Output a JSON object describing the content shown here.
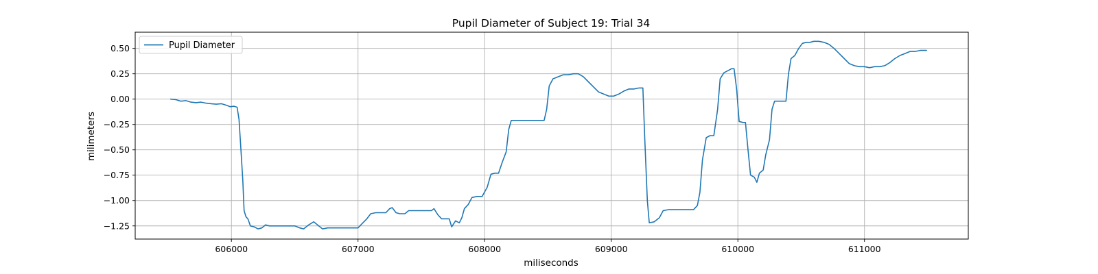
{
  "chart_data": {
    "type": "line",
    "title": "Pupil Diameter of Subject 19: Trial 34",
    "xlabel": "miliseconds",
    "ylabel": "milimeters",
    "xlim": [
      605240,
      611820
    ],
    "ylim": [
      -1.38,
      0.66
    ],
    "xticks": [
      606000,
      607000,
      608000,
      609000,
      610000,
      611000
    ],
    "xtick_labels": [
      "606000",
      "607000",
      "608000",
      "609000",
      "610000",
      "611000"
    ],
    "yticks": [
      0.5,
      0.25,
      0.0,
      -0.25,
      -0.5,
      -0.75,
      -1.0,
      -1.25
    ],
    "ytick_labels": [
      "0.50",
      "0.25",
      "0.00",
      "−0.25",
      "−0.50",
      "−0.75",
      "−1.00",
      "−1.25"
    ],
    "grid": true,
    "legend_position": "top-left",
    "series": [
      {
        "name": "Pupil Diameter",
        "color": "#1f77b4",
        "points": [
          [
            605520,
            0.0
          ],
          [
            605560,
            -0.005
          ],
          [
            605600,
            -0.02
          ],
          [
            605640,
            -0.015
          ],
          [
            605680,
            -0.03
          ],
          [
            605720,
            -0.035
          ],
          [
            605760,
            -0.03
          ],
          [
            605800,
            -0.04
          ],
          [
            605840,
            -0.045
          ],
          [
            605880,
            -0.05
          ],
          [
            605920,
            -0.045
          ],
          [
            605960,
            -0.06
          ],
          [
            605990,
            -0.075
          ],
          [
            606020,
            -0.07
          ],
          [
            606045,
            -0.08
          ],
          [
            606060,
            -0.2
          ],
          [
            606075,
            -0.5
          ],
          [
            606090,
            -0.8
          ],
          [
            606100,
            -1.1
          ],
          [
            606115,
            -1.16
          ],
          [
            606130,
            -1.18
          ],
          [
            606150,
            -1.25
          ],
          [
            606180,
            -1.26
          ],
          [
            606210,
            -1.28
          ],
          [
            606240,
            -1.27
          ],
          [
            606270,
            -1.24
          ],
          [
            606300,
            -1.25
          ],
          [
            606350,
            -1.25
          ],
          [
            606400,
            -1.25
          ],
          [
            606450,
            -1.25
          ],
          [
            606500,
            -1.25
          ],
          [
            606540,
            -1.27
          ],
          [
            606570,
            -1.28
          ],
          [
            606610,
            -1.24
          ],
          [
            606650,
            -1.21
          ],
          [
            606690,
            -1.25
          ],
          [
            606720,
            -1.28
          ],
          [
            606760,
            -1.27
          ],
          [
            606800,
            -1.27
          ],
          [
            606850,
            -1.27
          ],
          [
            606900,
            -1.27
          ],
          [
            606960,
            -1.27
          ],
          [
            607000,
            -1.27
          ],
          [
            607030,
            -1.23
          ],
          [
            607070,
            -1.18
          ],
          [
            607100,
            -1.13
          ],
          [
            607140,
            -1.12
          ],
          [
            607180,
            -1.12
          ],
          [
            607220,
            -1.12
          ],
          [
            607250,
            -1.08
          ],
          [
            607270,
            -1.07
          ],
          [
            607300,
            -1.12
          ],
          [
            607330,
            -1.13
          ],
          [
            607370,
            -1.13
          ],
          [
            607400,
            -1.1
          ],
          [
            607450,
            -1.1
          ],
          [
            607500,
            -1.1
          ],
          [
            607550,
            -1.1
          ],
          [
            607580,
            -1.1
          ],
          [
            607600,
            -1.08
          ],
          [
            607630,
            -1.14
          ],
          [
            607660,
            -1.18
          ],
          [
            607700,
            -1.18
          ],
          [
            607720,
            -1.18
          ],
          [
            607740,
            -1.26
          ],
          [
            607770,
            -1.2
          ],
          [
            607800,
            -1.22
          ],
          [
            607820,
            -1.17
          ],
          [
            607840,
            -1.08
          ],
          [
            607870,
            -1.04
          ],
          [
            607900,
            -0.97
          ],
          [
            607940,
            -0.96
          ],
          [
            607980,
            -0.96
          ],
          [
            608020,
            -0.87
          ],
          [
            608050,
            -0.74
          ],
          [
            608080,
            -0.73
          ],
          [
            608110,
            -0.73
          ],
          [
            608140,
            -0.62
          ],
          [
            608170,
            -0.52
          ],
          [
            608190,
            -0.3
          ],
          [
            608210,
            -0.21
          ],
          [
            608250,
            -0.21
          ],
          [
            608300,
            -0.21
          ],
          [
            608350,
            -0.21
          ],
          [
            608400,
            -0.21
          ],
          [
            608440,
            -0.21
          ],
          [
            608470,
            -0.21
          ],
          [
            608490,
            -0.1
          ],
          [
            608510,
            0.13
          ],
          [
            608540,
            0.2
          ],
          [
            608580,
            0.22
          ],
          [
            608620,
            0.24
          ],
          [
            608660,
            0.24
          ],
          [
            608700,
            0.25
          ],
          [
            608740,
            0.25
          ],
          [
            608780,
            0.22
          ],
          [
            608820,
            0.17
          ],
          [
            608860,
            0.12
          ],
          [
            608900,
            0.07
          ],
          [
            608940,
            0.05
          ],
          [
            608980,
            0.03
          ],
          [
            609020,
            0.03
          ],
          [
            609060,
            0.05
          ],
          [
            609100,
            0.08
          ],
          [
            609140,
            0.1
          ],
          [
            609180,
            0.1
          ],
          [
            609220,
            0.11
          ],
          [
            609250,
            0.11
          ],
          [
            609265,
            -0.4
          ],
          [
            609285,
            -1.0
          ],
          [
            609300,
            -1.22
          ],
          [
            609340,
            -1.21
          ],
          [
            609380,
            -1.17
          ],
          [
            609410,
            -1.1
          ],
          [
            609450,
            -1.09
          ],
          [
            609500,
            -1.09
          ],
          [
            609550,
            -1.09
          ],
          [
            609600,
            -1.09
          ],
          [
            609650,
            -1.09
          ],
          [
            609680,
            -1.05
          ],
          [
            609700,
            -0.92
          ],
          [
            609720,
            -0.6
          ],
          [
            609750,
            -0.38
          ],
          [
            609780,
            -0.36
          ],
          [
            609810,
            -0.36
          ],
          [
            609840,
            -0.1
          ],
          [
            609860,
            0.2
          ],
          [
            609890,
            0.26
          ],
          [
            609920,
            0.28
          ],
          [
            609950,
            0.3
          ],
          [
            609970,
            0.3
          ],
          [
            609990,
            0.1
          ],
          [
            610010,
            -0.22
          ],
          [
            610040,
            -0.23
          ],
          [
            610060,
            -0.23
          ],
          [
            610080,
            -0.5
          ],
          [
            610100,
            -0.75
          ],
          [
            610130,
            -0.77
          ],
          [
            610150,
            -0.82
          ],
          [
            610170,
            -0.73
          ],
          [
            610200,
            -0.7
          ],
          [
            610220,
            -0.55
          ],
          [
            610250,
            -0.4
          ],
          [
            610270,
            -0.1
          ],
          [
            610290,
            -0.02
          ],
          [
            610320,
            -0.02
          ],
          [
            610350,
            -0.02
          ],
          [
            610380,
            -0.02
          ],
          [
            610400,
            0.25
          ],
          [
            610420,
            0.4
          ],
          [
            610450,
            0.43
          ],
          [
            610480,
            0.5
          ],
          [
            610510,
            0.55
          ],
          [
            610540,
            0.56
          ],
          [
            610570,
            0.56
          ],
          [
            610600,
            0.57
          ],
          [
            610640,
            0.57
          ],
          [
            610680,
            0.56
          ],
          [
            610720,
            0.54
          ],
          [
            610760,
            0.5
          ],
          [
            610800,
            0.45
          ],
          [
            610840,
            0.4
          ],
          [
            610880,
            0.35
          ],
          [
            610920,
            0.33
          ],
          [
            610960,
            0.32
          ],
          [
            611000,
            0.32
          ],
          [
            611040,
            0.31
          ],
          [
            611080,
            0.32
          ],
          [
            611120,
            0.32
          ],
          [
            611160,
            0.33
          ],
          [
            611200,
            0.36
          ],
          [
            611240,
            0.4
          ],
          [
            611280,
            0.43
          ],
          [
            611320,
            0.45
          ],
          [
            611360,
            0.47
          ],
          [
            611400,
            0.47
          ],
          [
            611440,
            0.48
          ],
          [
            611490,
            0.48
          ]
        ]
      }
    ]
  }
}
